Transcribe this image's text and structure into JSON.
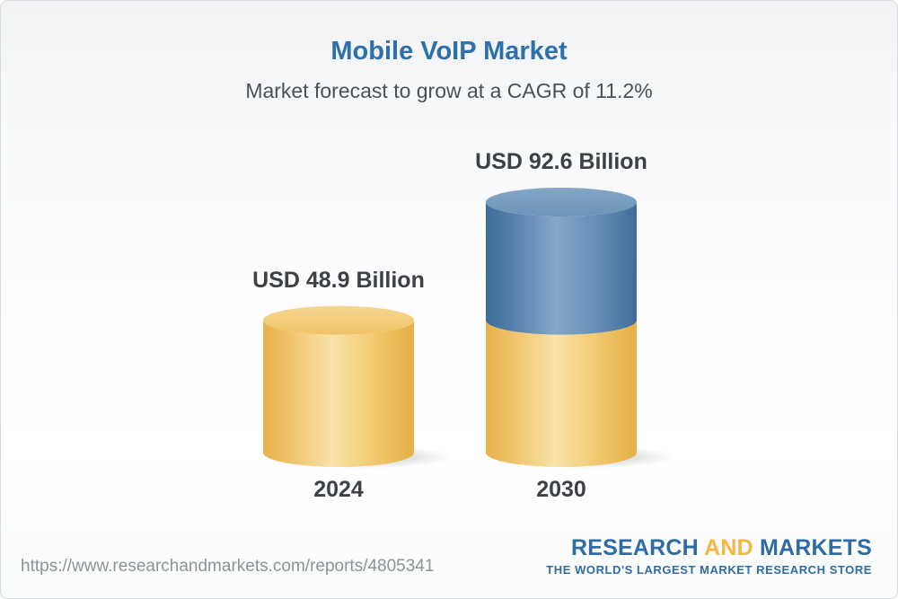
{
  "page": {
    "title": "Mobile VoIP Market",
    "subtitle": "Market forecast to grow at a CAGR of 11.2%"
  },
  "chart_data": {
    "type": "bar",
    "variant": "3d-cylinder, 2030 bar stacked (base = 2024 value, blue top = growth increment)",
    "title": "Mobile VoIP Market",
    "subtitle": "Market forecast to grow at a CAGR of 11.2%",
    "cagr_percent": 11.2,
    "unit": "USD Billion",
    "categories": [
      "2024",
      "2030"
    ],
    "values": [
      48.9,
      92.6
    ],
    "data_labels": [
      "USD 48.9 Billion",
      "USD 92.6 Billion"
    ],
    "ylim": [
      0,
      92.6
    ],
    "grid": false,
    "legend": false,
    "colors": {
      "base_segment_gold": "#F0C566",
      "growth_segment_blue": "#5585B0",
      "label_text": "#3D4145",
      "title_blue": "#2C70AE",
      "subtitle_gray": "#4C5055"
    }
  },
  "footer": {
    "url": "https://www.researchandmarkets.com/reports/4805341",
    "logo": {
      "part1": "RESEARCH",
      "part2": "AND",
      "part3": "MARKETS",
      "tagline": "THE WORLD'S LARGEST MARKET RESEARCH STORE",
      "brand_blue": "#2E6CA6",
      "brand_yellow": "#F2B844"
    }
  }
}
